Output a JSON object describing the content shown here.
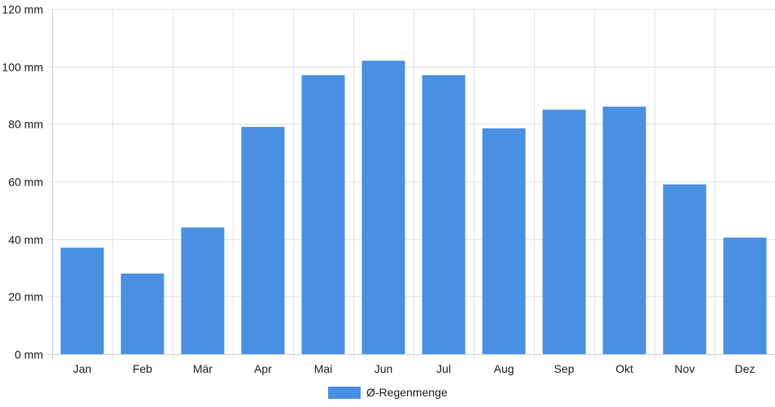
{
  "chart_data": {
    "type": "bar",
    "categories": [
      "Jan",
      "Feb",
      "Mär",
      "Apr",
      "Mai",
      "Jun",
      "Jul",
      "Aug",
      "Sep",
      "Okt",
      "Nov",
      "Dez"
    ],
    "series": [
      {
        "name": "Ø-Regenmenge",
        "values": [
          37,
          28,
          44,
          79,
          97,
          102,
          97,
          78.5,
          85,
          86,
          59,
          40.5
        ]
      }
    ],
    "y_ticks": [
      "0 mm",
      "20 mm",
      "40 mm",
      "60 mm",
      "80 mm",
      "100 mm",
      "120 mm"
    ],
    "ylim": [
      0,
      120
    ],
    "grid": true,
    "legend_position": "bottom",
    "colors": {
      "bar": "#4a90e2",
      "grid": "#e4e4e4",
      "axis": "#cfcfcf",
      "text": "#222222"
    }
  }
}
